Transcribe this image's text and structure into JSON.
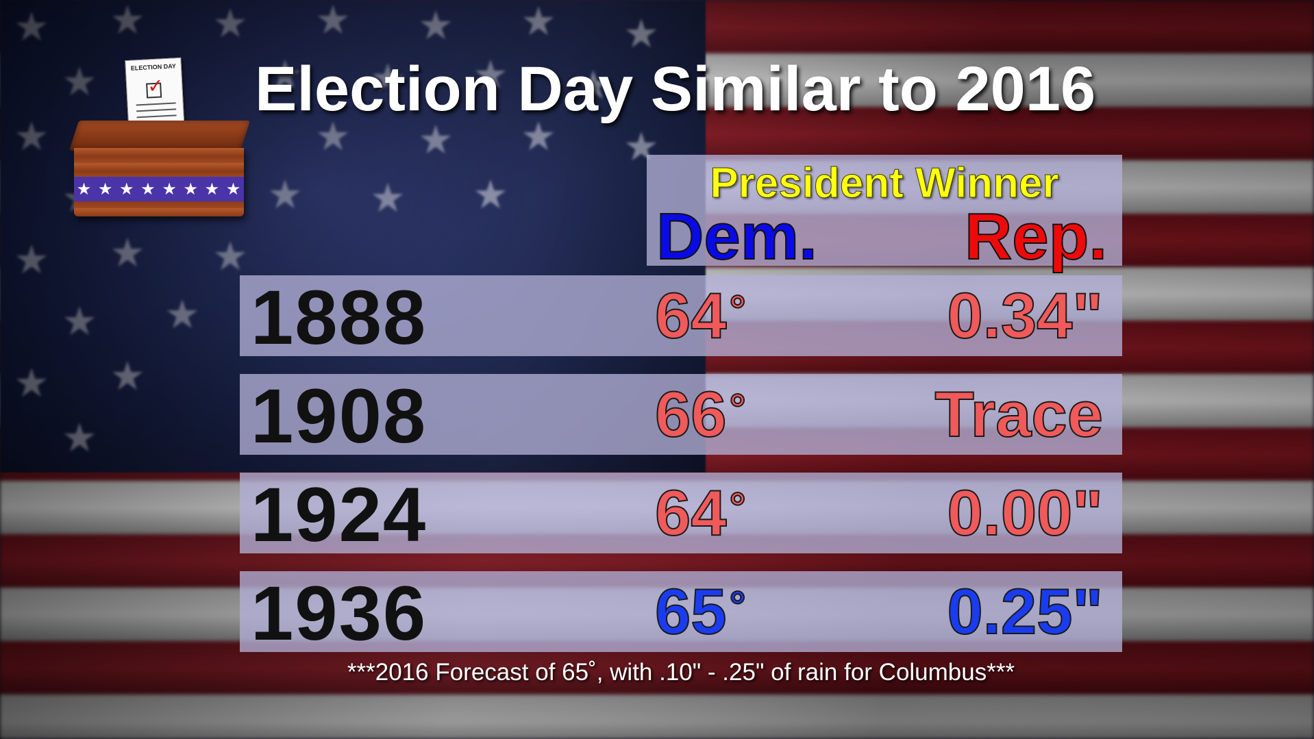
{
  "title": "Election Day Similar to 2016",
  "ballot_box": {
    "paper_label": "ELECTION DAY",
    "icon": "ballot-box-icon"
  },
  "header": {
    "label": "President Winner",
    "dem": "Dem.",
    "rep": "Rep."
  },
  "rows": [
    {
      "year": "1888",
      "temp": "64",
      "temp_deg": "°",
      "precip": "0.34\"",
      "winner": "rep",
      "color": "#f05a5a"
    },
    {
      "year": "1908",
      "temp": "66",
      "temp_deg": "°",
      "precip": "Trace",
      "winner": "rep",
      "color": "#f05a5a"
    },
    {
      "year": "1924",
      "temp": "64",
      "temp_deg": "°",
      "precip": "0.00\"",
      "winner": "rep",
      "color": "#f05a5a"
    },
    {
      "year": "1936",
      "temp": "65",
      "temp_deg": "°",
      "precip": "0.25\"",
      "winner": "dem",
      "color": "#1a3cf0"
    }
  ],
  "footnote": "***2016 Forecast of 65˚, with .10\" - .25\" of rain for Columbus***",
  "colors": {
    "dem": "#0a0ae6",
    "rep": "#ee0a0a",
    "header_label": "#ffff10"
  }
}
